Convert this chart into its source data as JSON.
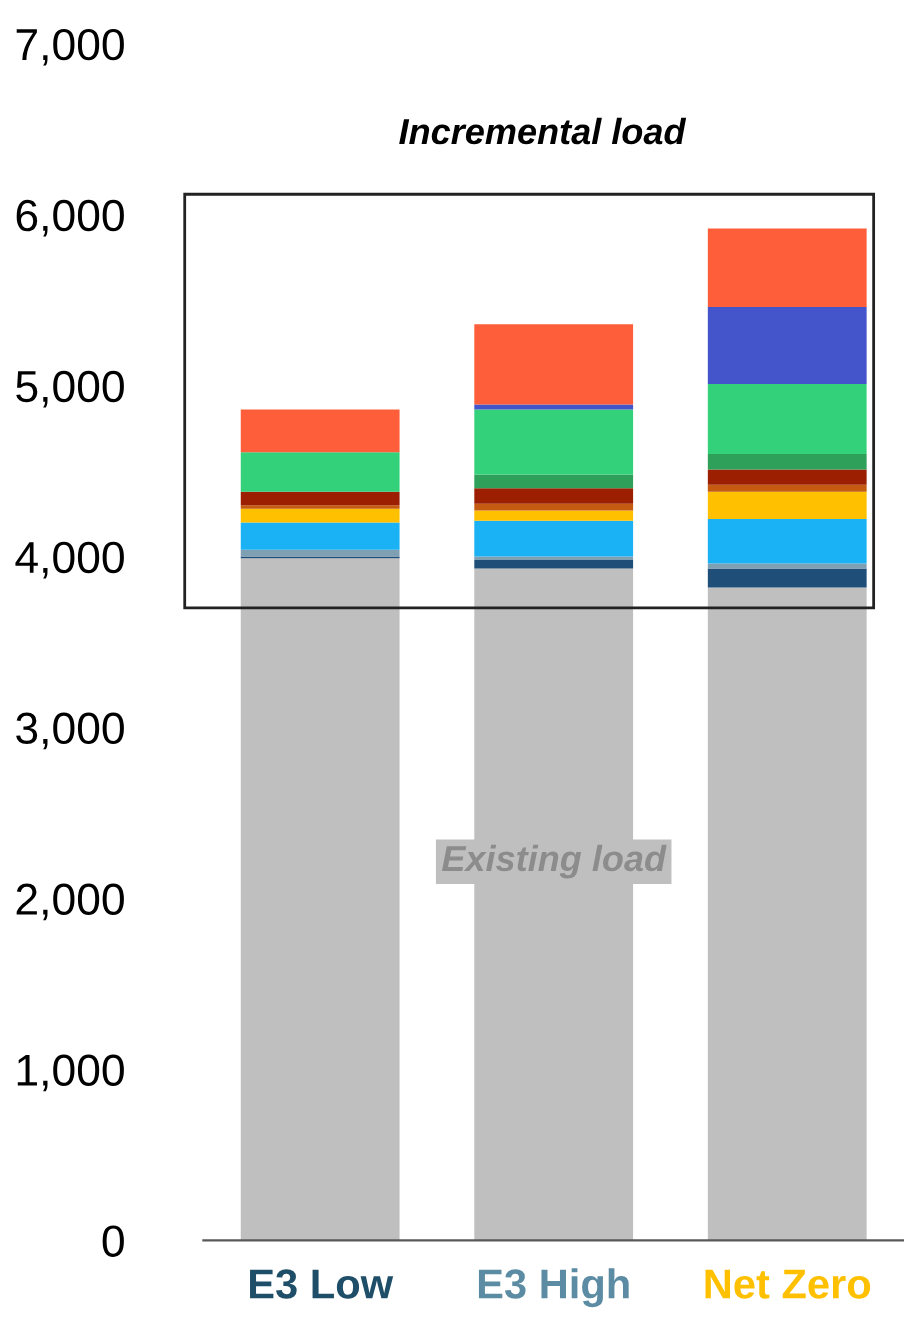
{
  "chart_data": {
    "type": "bar",
    "stacked": true,
    "categories": [
      "E3 Low",
      "E3 High",
      "Net Zero"
    ],
    "series": [
      {
        "color": "#bfbfbf",
        "values": [
          3990,
          3930,
          3820
        ]
      },
      {
        "color": "#1f4e79",
        "values": [
          10,
          50,
          110
        ]
      },
      {
        "color": "#7f9fb3",
        "values": [
          40,
          20,
          30
        ]
      },
      {
        "color": "#1ab2f5",
        "values": [
          160,
          210,
          260
        ]
      },
      {
        "color": "#ffc000",
        "values": [
          80,
          60,
          160
        ]
      },
      {
        "color": "#c55a11",
        "values": [
          20,
          40,
          40
        ]
      },
      {
        "color": "#9b1f00",
        "values": [
          80,
          90,
          90
        ]
      },
      {
        "color": "#2ea05a",
        "values": [
          0,
          80,
          90
        ]
      },
      {
        "color": "#33d17a",
        "values": [
          230,
          380,
          410
        ]
      },
      {
        "color": "#4455cc",
        "values": [
          0,
          30,
          450
        ]
      },
      {
        "color": "#ff5e3a",
        "values": [
          250,
          470,
          460
        ]
      }
    ],
    "ylim": [
      0,
      7000
    ],
    "yticks": [
      {
        "value": 0,
        "label": "0"
      },
      {
        "value": 1000,
        "label": "1,000"
      },
      {
        "value": 2000,
        "label": "2,000"
      },
      {
        "value": 3000,
        "label": "3,000"
      },
      {
        "value": 4000,
        "label": "4,000"
      },
      {
        "value": 5000,
        "label": "5,000"
      },
      {
        "value": 6000,
        "label": "6,000"
      },
      {
        "value": 7000,
        "label": "7,000"
      }
    ],
    "grid": false,
    "legend": false,
    "annotations": [
      "Incremental load",
      "Existing load"
    ]
  }
}
